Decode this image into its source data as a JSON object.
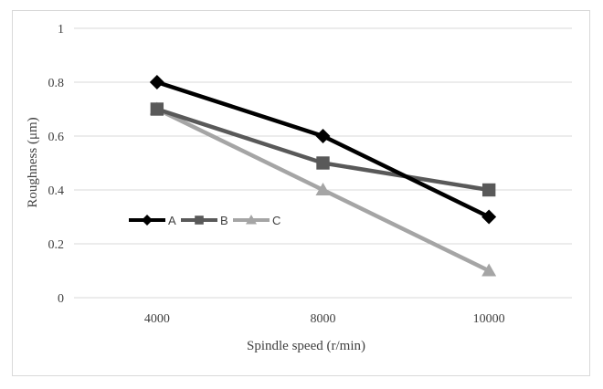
{
  "chart_data": {
    "type": "line",
    "title": "",
    "xlabel": "Spindle speed (r/min)",
    "ylabel": "Roughness (μm)",
    "categories": [
      "4000",
      "8000",
      "10000"
    ],
    "ylim": [
      0,
      1
    ],
    "yticks": [
      "0",
      "0.2",
      "0.4",
      "0.6",
      "0.8",
      "1"
    ],
    "ytick_values": [
      0,
      0.2,
      0.4,
      0.6,
      0.8,
      1
    ],
    "grid": true,
    "legend_position": "inside-left",
    "series": [
      {
        "name": "A",
        "values": [
          0.8,
          0.6,
          0.3
        ],
        "color": "#000000",
        "marker": "diamond"
      },
      {
        "name": "B",
        "values": [
          0.7,
          0.5,
          0.4
        ],
        "color": "#595959",
        "marker": "square"
      },
      {
        "name": "C",
        "values": [
          0.7,
          0.4,
          0.1
        ],
        "color": "#a5a5a5",
        "marker": "triangle"
      }
    ]
  }
}
